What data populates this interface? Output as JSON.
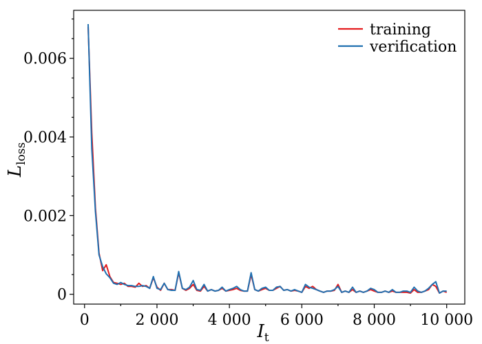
{
  "chart_data": {
    "type": "line",
    "xlabel": {
      "main": "I",
      "sub": "t"
    },
    "ylabel": {
      "main": "L",
      "sub": "loss"
    },
    "xlim": [
      -300,
      10500
    ],
    "ylim": [
      -0.00025,
      0.00722
    ],
    "xticks": [
      {
        "value": 0,
        "label": "0"
      },
      {
        "value": 2000,
        "label": "2 000"
      },
      {
        "value": 4000,
        "label": "4 000"
      },
      {
        "value": 6000,
        "label": "6 000"
      },
      {
        "value": 8000,
        "label": "8 000"
      },
      {
        "value": 10000,
        "label": "10 000"
      }
    ],
    "yticks": [
      {
        "value": 0,
        "label": "0"
      },
      {
        "value": 0.002,
        "label": "0.002"
      },
      {
        "value": 0.004,
        "label": "0.004"
      },
      {
        "value": 0.006,
        "label": "0.006"
      }
    ],
    "x": [
      100,
      200,
      300,
      400,
      500,
      600,
      700,
      800,
      900,
      1000,
      1100,
      1200,
      1300,
      1400,
      1500,
      1600,
      1700,
      1800,
      1900,
      2000,
      2100,
      2200,
      2300,
      2400,
      2500,
      2600,
      2700,
      2800,
      2900,
      3000,
      3100,
      3200,
      3300,
      3400,
      3500,
      3600,
      3700,
      3800,
      3900,
      4000,
      4100,
      4200,
      4300,
      4400,
      4500,
      4600,
      4700,
      4800,
      4900,
      5000,
      5100,
      5200,
      5300,
      5400,
      5500,
      5600,
      5700,
      5800,
      5900,
      6000,
      6100,
      6200,
      6300,
      6400,
      6500,
      6600,
      6700,
      6800,
      6900,
      7000,
      7100,
      7200,
      7300,
      7400,
      7500,
      7600,
      7700,
      7800,
      7900,
      8000,
      8100,
      8200,
      8300,
      8400,
      8500,
      8600,
      8700,
      8800,
      8900,
      9000,
      9100,
      9200,
      9300,
      9400,
      9500,
      9600,
      9700,
      9800,
      9900,
      10000
    ],
    "series": [
      {
        "name": "training",
        "color": "#e41a1c",
        "values": [
          0.0068,
          0.0041,
          0.0022,
          0.00105,
          0.0006,
          0.00075,
          0.00045,
          0.0003,
          0.00028,
          0.00025,
          0.00028,
          0.0002,
          0.0002,
          0.00018,
          0.00028,
          0.0002,
          0.00022,
          0.00015,
          0.00042,
          0.00018,
          0.0001,
          0.00028,
          0.00012,
          0.00012,
          0.0001,
          0.00055,
          0.00015,
          0.0001,
          0.00015,
          0.00025,
          0.0001,
          8e-05,
          0.0002,
          8e-05,
          0.00012,
          8e-05,
          0.0001,
          0.00015,
          8e-05,
          0.0001,
          0.00012,
          0.00015,
          0.0001,
          8e-05,
          8e-05,
          0.0005,
          0.00012,
          8e-05,
          0.00012,
          0.00015,
          0.0001,
          0.0001,
          0.00015,
          0.0002,
          0.0001,
          0.00012,
          8e-05,
          0.0001,
          8e-05,
          5e-05,
          0.0002,
          0.00015,
          0.0002,
          0.00012,
          8e-05,
          5e-05,
          8e-05,
          8e-05,
          0.0001,
          0.00025,
          5e-05,
          8e-05,
          5e-05,
          0.00012,
          5e-05,
          8e-05,
          5e-05,
          8e-05,
          0.00012,
          8e-05,
          5e-05,
          5e-05,
          8e-05,
          5e-05,
          8e-05,
          5e-05,
          5e-05,
          5e-05,
          5e-05,
          3e-05,
          0.00012,
          5e-05,
          5e-05,
          8e-05,
          0.00012,
          0.00025,
          0.0002,
          3e-05,
          8e-05,
          5e-05
        ]
      },
      {
        "name": "verification",
        "color": "#1f6fb0",
        "values": [
          0.00687,
          0.0037,
          0.0021,
          0.001,
          0.0007,
          0.00052,
          0.00042,
          0.00028,
          0.00025,
          0.0003,
          0.00025,
          0.00022,
          0.00022,
          0.0002,
          0.0002,
          0.00022,
          0.0002,
          0.00015,
          0.00045,
          0.00015,
          0.00012,
          0.00028,
          0.00012,
          0.0001,
          0.0001,
          0.00058,
          0.00015,
          0.00012,
          0.00018,
          0.00035,
          0.00012,
          0.0001,
          0.00025,
          8e-05,
          0.00012,
          8e-05,
          0.0001,
          0.00018,
          8e-05,
          0.00012,
          0.00015,
          0.0002,
          0.00012,
          8e-05,
          8e-05,
          0.00055,
          0.00012,
          8e-05,
          0.00015,
          0.00018,
          0.0001,
          0.0001,
          0.00018,
          0.0002,
          0.0001,
          0.00012,
          8e-05,
          0.00012,
          8e-05,
          5e-05,
          0.00025,
          0.00018,
          0.00015,
          0.00012,
          8e-05,
          5e-05,
          8e-05,
          8e-05,
          0.00012,
          0.0002,
          5e-05,
          8e-05,
          5e-05,
          0.00018,
          5e-05,
          8e-05,
          5e-05,
          8e-05,
          0.00015,
          0.00012,
          5e-05,
          5e-05,
          8e-05,
          5e-05,
          0.00012,
          5e-05,
          5e-05,
          8e-05,
          8e-05,
          5e-05,
          0.00018,
          8e-05,
          5e-05,
          8e-05,
          0.00015,
          0.00025,
          0.00032,
          3e-05,
          8e-05,
          8e-05
        ]
      }
    ],
    "legend": {
      "placement": "top-right"
    },
    "grid": false
  }
}
